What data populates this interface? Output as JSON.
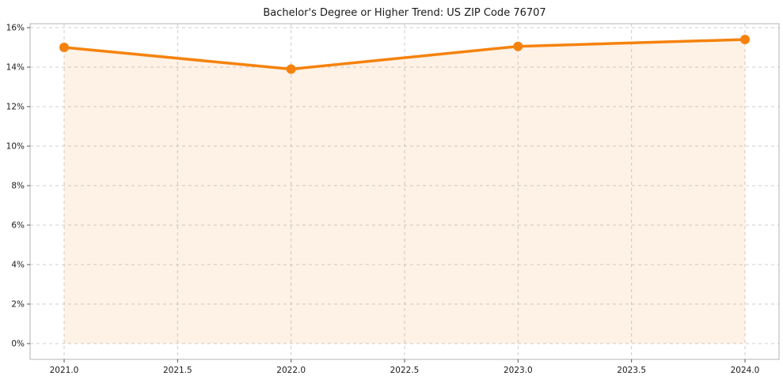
{
  "chart_data": {
    "type": "area",
    "title": "Bachelor's Degree or Higher Trend: US ZIP Code 76707",
    "xlabel": "",
    "ylabel": "",
    "x": [
      2021,
      2022,
      2023,
      2024
    ],
    "series": [
      {
        "name": "Bachelor's Degree or Higher %",
        "values": [
          15.0,
          13.9,
          15.05,
          15.4
        ]
      }
    ],
    "x_ticks": [
      2021.0,
      2021.5,
      2022.0,
      2022.5,
      2023.0,
      2023.5,
      2024.0
    ],
    "x_tick_labels": [
      "2021.0",
      "2021.5",
      "2022.0",
      "2022.5",
      "2023.0",
      "2023.5",
      "2024.0"
    ],
    "y_ticks": [
      0,
      2,
      4,
      6,
      8,
      10,
      12,
      14,
      16
    ],
    "y_tick_labels": [
      "0%",
      "2%",
      "4%",
      "6%",
      "8%",
      "10%",
      "12%",
      "14%",
      "16%"
    ],
    "xlim": [
      2020.85,
      2024.15
    ],
    "ylim": [
      -0.8,
      16.2
    ],
    "grid": true,
    "legend": "none",
    "colors": {
      "line": "#f5820d",
      "fill_opacity": 0.1,
      "grid": "#cccccc",
      "spine": "#b3b3b3",
      "tick": "#555555",
      "text": "#1a1a1a",
      "background": "#ffffff"
    }
  }
}
